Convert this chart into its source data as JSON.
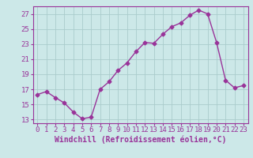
{
  "x": [
    0,
    1,
    2,
    3,
    4,
    5,
    6,
    7,
    8,
    9,
    10,
    11,
    12,
    13,
    14,
    15,
    16,
    17,
    18,
    19,
    20,
    21,
    22,
    23
  ],
  "y": [
    16.3,
    16.7,
    15.9,
    15.2,
    14.0,
    13.1,
    13.3,
    17.0,
    18.0,
    19.5,
    20.5,
    22.0,
    23.2,
    23.1,
    24.3,
    25.3,
    25.8,
    26.8,
    27.5,
    27.0,
    23.2,
    18.2,
    17.2,
    17.5
  ],
  "line_color": "#993399",
  "marker": "D",
  "marker_size": 2.5,
  "bg_color": "#cce8e8",
  "grid_color": "#aacccc",
  "xlabel": "Windchill (Refroidissement éolien,°C)",
  "yticks": [
    13,
    15,
    17,
    19,
    21,
    23,
    25,
    27
  ],
  "xticks": [
    0,
    1,
    2,
    3,
    4,
    5,
    6,
    7,
    8,
    9,
    10,
    11,
    12,
    13,
    14,
    15,
    16,
    17,
    18,
    19,
    20,
    21,
    22,
    23
  ],
  "ylim": [
    12.5,
    28.0
  ],
  "xlim": [
    -0.5,
    23.5
  ],
  "font_color": "#993399",
  "tick_font_size": 6.5,
  "label_font_size": 7.0,
  "spine_color": "#993399",
  "linewidth": 1.0
}
